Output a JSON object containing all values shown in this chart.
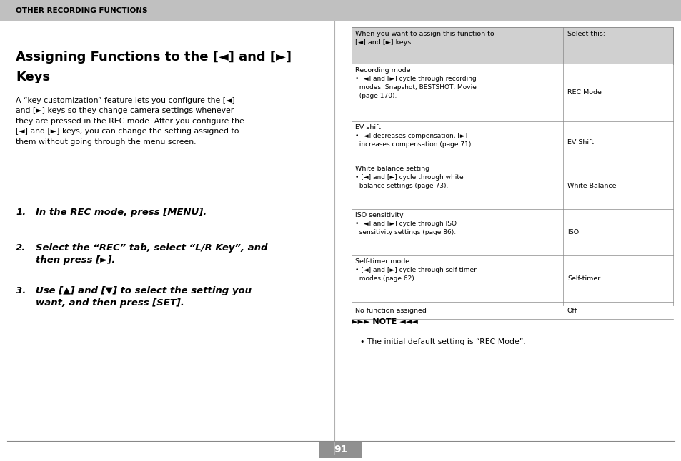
{
  "page_bg": "#ffffff",
  "header_bg": "#c0c0c0",
  "header_text": "OTHER RECORDING FUNCTIONS",
  "title_line1": "Assigning Functions to the [◄] and [►]",
  "title_line2": "Keys",
  "body_text": "A “key customization” feature lets you configure the [◄]\nand [►] keys so they change camera settings whenever\nthey are pressed in the REC mode. After you configure the\n[◄] and [►] keys, you can change the setting assigned to\nthem without going through the menu screen.",
  "step1_num": "1.",
  "step1_text": "In the REC mode, press [MENU].",
  "step2_num": "2.",
  "step2_text": "Select the “REC” tab, select “L/R Key”, and\nthen press [►].",
  "step3_num": "3.",
  "step3_text": "Use [▲] and [▼] to select the setting you\nwant, and then press [SET].",
  "table_header_col1": "When you want to assign this function to\n[◄] and [►] keys:",
  "table_header_col2": "Select this:",
  "table_header_bg": "#d0d0d0",
  "table_rows": [
    {
      "col1_title": "Recording mode",
      "col1_detail": "• [◄] and [►] cycle through recording\n  modes: Snapshot, BESTSHOT, Movie\n  (page 170).",
      "col2": "REC Mode"
    },
    {
      "col1_title": "EV shift",
      "col1_detail": "• [◄] decreases compensation, [►]\n  increases compensation (page 71).",
      "col2": "EV Shift"
    },
    {
      "col1_title": "White balance setting",
      "col1_detail": "• [◄] and [►] cycle through white\n  balance settings (page 73).",
      "col2": "White Balance"
    },
    {
      "col1_title": "ISO sensitivity",
      "col1_detail": "• [◄] and [►] cycle through ISO\n  sensitivity settings (page 86).",
      "col2": "ISO"
    },
    {
      "col1_title": "Self-timer mode",
      "col1_detail": "• [◄] and [►] cycle through self-timer\n  modes (page 62).",
      "col2": "Self-timer"
    },
    {
      "col1_title": "No function assigned",
      "col1_detail": "",
      "col2": "Off"
    }
  ],
  "note_label": "►►► NOTE ◄◄◄",
  "note_body": "• The initial default setting is “REC Mode”.",
  "page_number": "91",
  "page_num_bg": "#909090"
}
